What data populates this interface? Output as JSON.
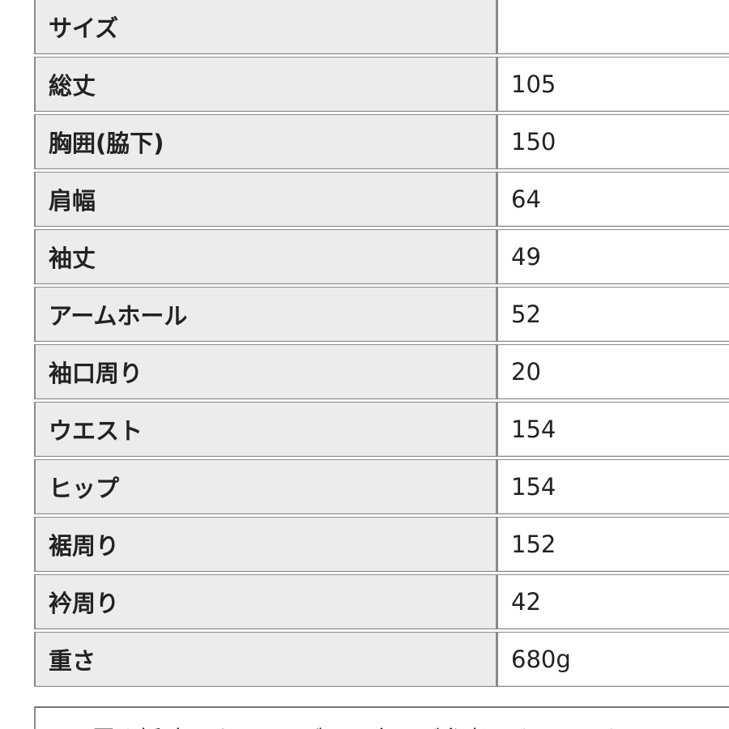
{
  "rows": [
    {
      "label": "サイズ",
      "value": ""
    },
    {
      "label": "総丈",
      "value": "105"
    },
    {
      "label": "胸囲(脇下)",
      "value": "150"
    },
    {
      "label": "肩幅",
      "value": "64"
    },
    {
      "label": "袖丈",
      "value": "49"
    },
    {
      "label": "アームホール",
      "value": "52"
    },
    {
      "label": "袖口周り",
      "value": "20"
    },
    {
      "label": "ウエスト",
      "value": "154"
    },
    {
      "label": "ヒップ",
      "value": "154"
    },
    {
      "label": "裾周り",
      "value": "152"
    },
    {
      "label": "衿周り",
      "value": "42"
    },
    {
      "label": "重さ",
      "value": "680g"
    }
  ],
  "note": "※平置き採寸です。サイズは目安にご参考下さい。より"
}
